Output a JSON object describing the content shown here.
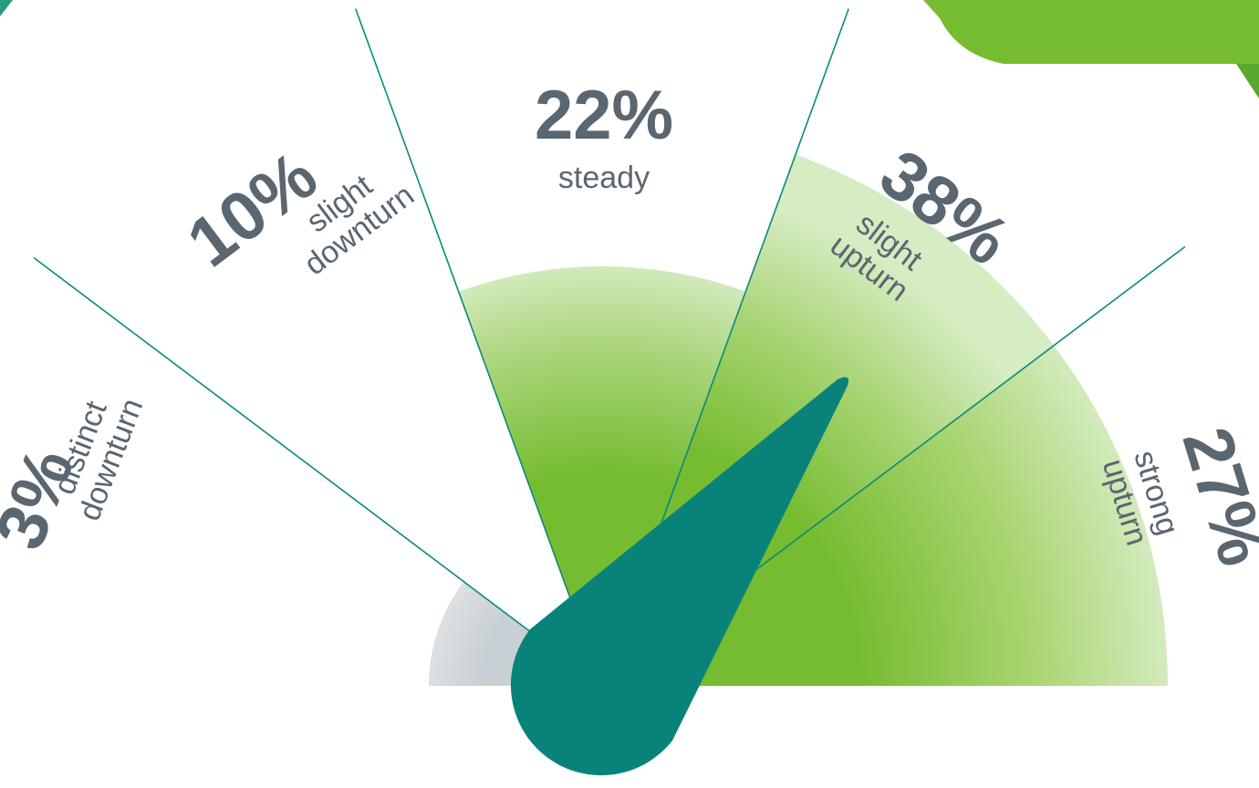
{
  "chart_data": {
    "type": "gauge",
    "title": "",
    "segments": [
      {
        "value": 3,
        "pct_label": "3%",
        "label_lines": [
          "distinct",
          "downturn"
        ]
      },
      {
        "value": 10,
        "pct_label": "10%",
        "label_lines": [
          "slight",
          "downturn"
        ]
      },
      {
        "value": 22,
        "pct_label": "22%",
        "label_lines": [
          "steady"
        ]
      },
      {
        "value": 38,
        "pct_label": "38%",
        "label_lines": [
          "slight",
          "upturn"
        ]
      },
      {
        "value": 27,
        "pct_label": "27%",
        "label_lines": [
          "strong",
          "upturn"
        ]
      }
    ],
    "needle": "slight upturn"
  },
  "colors": {
    "text": "#5a6670",
    "divider": "#0a8a7a",
    "needle": "#09837a",
    "green": "#76bc30",
    "green_light": "#d6ecc2",
    "grey": "#c6ced3",
    "grey_light": "#eeeeee"
  }
}
